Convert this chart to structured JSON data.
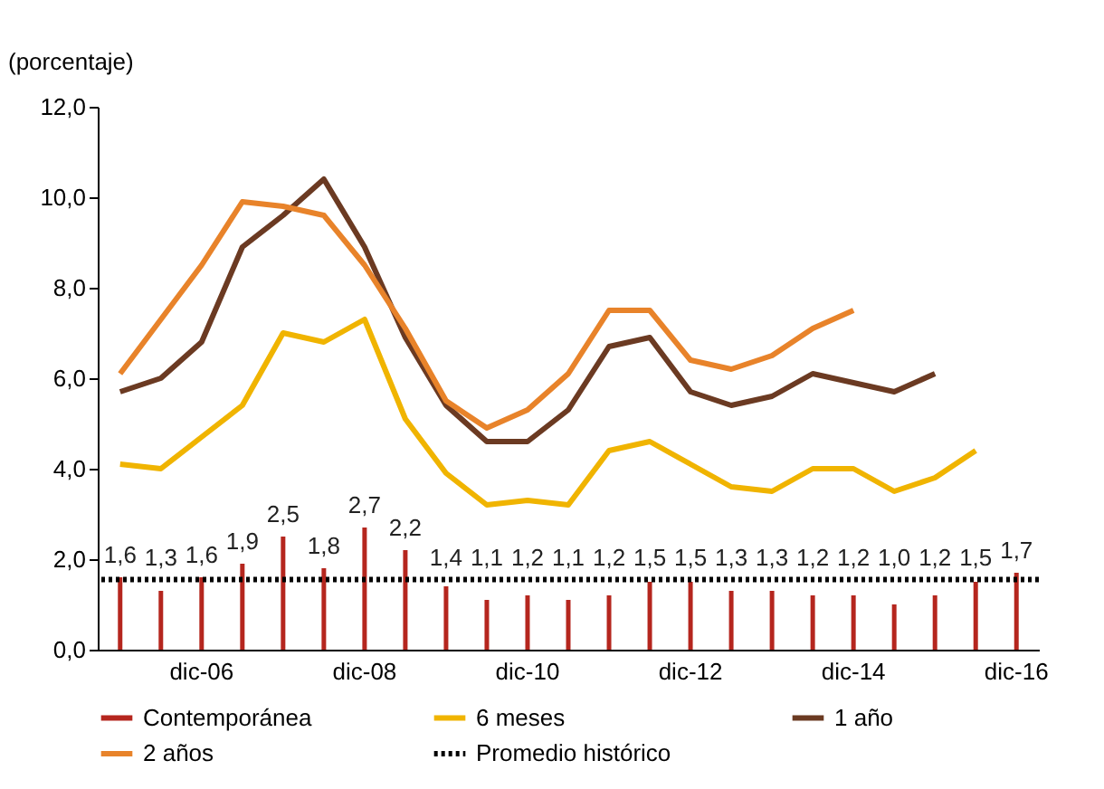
{
  "chart_data": {
    "type": "bar",
    "ylabel": "(porcentaje)",
    "categories": [
      null,
      null,
      "dic-06",
      null,
      null,
      null,
      "dic-08",
      null,
      null,
      null,
      "dic-10",
      null,
      null,
      null,
      "dic-12",
      null,
      null,
      null,
      "dic-14",
      null,
      null,
      null,
      "dic-16"
    ],
    "series": [
      {
        "name": "Contemporánea",
        "color": "#b5261e",
        "values": [
          1.6,
          1.3,
          1.6,
          1.9,
          2.5,
          1.8,
          2.7,
          2.2,
          1.4,
          1.1,
          1.2,
          1.1,
          1.2,
          1.5,
          1.5,
          1.3,
          1.3,
          1.2,
          1.2,
          1.0,
          1.2,
          1.5,
          1.7
        ],
        "value_labels": [
          "1,6",
          "1,3",
          "1,6",
          "1,9",
          "2,5",
          "1,8",
          "2,7",
          "2,2",
          "1,4",
          "1,1",
          "1,2",
          "1,1",
          "1,2",
          "1,5",
          "1,5",
          "1,3",
          "1,3",
          "1,2",
          "1,2",
          "1,0",
          "1,2",
          "1,5",
          "1,7"
        ]
      },
      {
        "name": "6 meses",
        "type": "line",
        "color": "#f0b400",
        "values": [
          4.1,
          4.0,
          4.7,
          5.4,
          7.0,
          6.8,
          7.3,
          5.1,
          3.9,
          3.2,
          3.3,
          3.2,
          4.4,
          4.6,
          4.1,
          3.6,
          3.5,
          4.0,
          4.0,
          3.5,
          3.8,
          4.4,
          null
        ]
      },
      {
        "name": "1 año",
        "type": "line",
        "color": "#6b3a22",
        "values": [
          5.7,
          6.0,
          6.8,
          8.9,
          9.6,
          10.4,
          8.9,
          6.9,
          5.4,
          4.6,
          4.6,
          5.3,
          6.7,
          6.9,
          5.7,
          5.4,
          5.6,
          6.1,
          5.9,
          5.7,
          6.1,
          null,
          null
        ]
      },
      {
        "name": "2 años",
        "type": "line",
        "color": "#e8832a",
        "values": [
          6.1,
          7.3,
          8.5,
          9.9,
          9.8,
          9.6,
          8.5,
          7.1,
          5.5,
          4.9,
          5.3,
          6.1,
          7.5,
          7.5,
          6.4,
          6.2,
          6.5,
          7.1,
          7.5,
          null,
          null,
          null,
          null
        ]
      }
    ],
    "ylim": [
      0,
      12
    ],
    "yticks": [
      {
        "value": 0,
        "label": "0,0"
      },
      {
        "value": 2,
        "label": "2,0"
      },
      {
        "value": 4,
        "label": "4,0"
      },
      {
        "value": 6,
        "label": "6,0"
      },
      {
        "value": 8,
        "label": "8,0"
      },
      {
        "value": 10,
        "label": "10,0"
      },
      {
        "value": 12,
        "label": "12,0"
      }
    ],
    "ref_lines": [
      {
        "axis": "y",
        "value": 1.55,
        "label": "Promedio histórico",
        "color": "#000000",
        "line_style": "dotted"
      }
    ],
    "legend": "bottom",
    "grid": false,
    "marker": "none",
    "line_style": "solid"
  }
}
